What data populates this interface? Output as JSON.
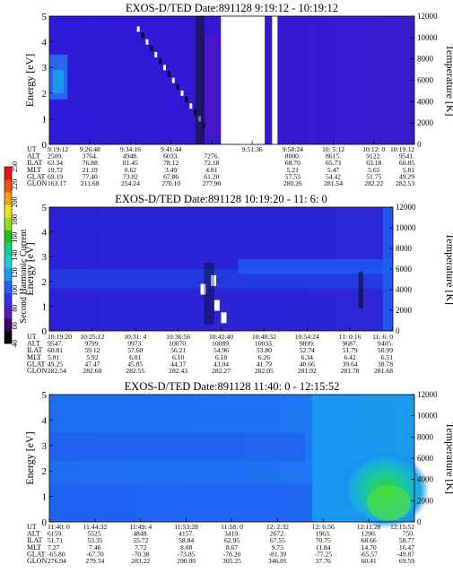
{
  "colorbar": {
    "label": "Second Harmonic Current",
    "ticks": [
      "40",
      "60",
      "80",
      "100",
      "120",
      "140",
      "160",
      "180",
      "200",
      "220",
      "250"
    ],
    "colors": [
      "#000000",
      "#3a0066",
      "#5a18c0",
      "#3030f0",
      "#1e62f5",
      "#189ef0",
      "#18d0d8",
      "#10d088",
      "#20c020",
      "#90e020",
      "#e8e818",
      "#f0a010",
      "#f05010",
      "#e81010"
    ]
  },
  "chart_data": [
    {
      "type": "heatmap",
      "title": "EXOS-D/TED   Date:891128  9:19:12 - 10:19:12",
      "ylabel": "Energy [eV]",
      "y2label": "Temperature [K]",
      "ylim": [
        0,
        5
      ],
      "y2lim": [
        0,
        12000
      ],
      "yticks": [
        "0",
        "1",
        "2",
        "3",
        "4",
        "5"
      ],
      "y2ticks": [
        "0",
        "2000",
        "4000",
        "6000",
        "8000",
        "10000",
        "12000"
      ],
      "rows": [
        {
          "label": "UT",
          "values": [
            "9:19:12",
            "9:26:48",
            "9:34:16",
            "9:41:44",
            "",
            "9:51:36",
            "9:58:24",
            "10: 5:12",
            "10:12: 0",
            "10:19:12"
          ]
        },
        {
          "label": "ALT",
          "values": [
            "2509.",
            "3764.",
            "4948.",
            "6033.",
            "7276.",
            "",
            "8000.",
            "8615.",
            "9122.",
            "9541."
          ]
        },
        {
          "label": "ILAT",
          "values": [
            "63.34",
            "76.88",
            "81.45",
            "78.12",
            "72.18",
            "",
            "68.70",
            "65.73",
            "63.18",
            "60.85"
          ]
        },
        {
          "label": "MLT",
          "values": [
            "19.72",
            "21.19",
            "0.62",
            "3.49",
            "4.81",
            "",
            "5.21",
            "5.47",
            "5.65",
            "5.81"
          ]
        },
        {
          "label": "GLAT",
          "values": [
            "69.19",
            "77.40",
            "73.82",
            "67.86",
            "61.20",
            "",
            "57.53",
            "54.42",
            "51.75",
            "49.29"
          ]
        },
        {
          "label": "GLON",
          "values": [
            "163.17",
            "211.68",
            "254.24",
            "270.10",
            "277.90",
            "",
            "280.26",
            "281.54",
            "282.22",
            "282.53"
          ]
        }
      ]
    },
    {
      "type": "heatmap",
      "title": "EXOS-D/TED   Date:891128  10:19:20 - 11: 6: 0",
      "ylabel": "Energy [eV]",
      "y2label": "Temperature [K]",
      "ylim": [
        0,
        5
      ],
      "y2lim": [
        0,
        12000
      ],
      "yticks": [
        "0",
        "1",
        "2",
        "3",
        "4",
        "5"
      ],
      "y2ticks": [
        "0",
        "2000",
        "4000",
        "6000",
        "8000",
        "10000",
        "12000"
      ],
      "rows": [
        {
          "label": "UT",
          "values": [
            "10:19:20",
            "10:25:12",
            "10:31: 4",
            "10:36:56",
            "10:42:40",
            "10:48:32",
            "10:54:24",
            "11: 0:16",
            "11: 6: 0"
          ]
        },
        {
          "label": "ALT",
          "values": [
            "9547.",
            "9799.",
            "9973.",
            "10070.",
            "10089.",
            "10033.",
            "9899.",
            "9687.",
            "9405."
          ]
        },
        {
          "label": "ILAT",
          "values": [
            "60.81",
            "59.12",
            "57.60",
            "56.21",
            "54.96",
            "53.80",
            "52.74",
            "51.79",
            "50.99"
          ]
        },
        {
          "label": "MLT",
          "values": [
            "5.81",
            "5.92",
            "6.01",
            "6.10",
            "6.18",
            "6.26",
            "6.34",
            "6.42",
            "6.51"
          ]
        },
        {
          "label": "GLAT",
          "values": [
            "49.25",
            "47.47",
            "45.85",
            "44.37",
            "43.04",
            "41.79",
            "40.66",
            "39.64",
            "38.78"
          ]
        },
        {
          "label": "GLON",
          "values": [
            "282.54",
            "282.60",
            "282.55",
            "282.43",
            "282.27",
            "282.05",
            "281.92",
            "281.78",
            "281.68"
          ]
        }
      ]
    },
    {
      "type": "heatmap",
      "title": "EXOS-D/TED   Date:891128  11:40: 0 - 12:15:52",
      "ylabel": "Energy [eV]",
      "y2label": "Temperature [K]",
      "ylim": [
        0,
        5
      ],
      "y2lim": [
        0,
        12000
      ],
      "yticks": [
        "0",
        "1",
        "2",
        "3",
        "4",
        "5"
      ],
      "y2ticks": [
        "0",
        "2000",
        "4000",
        "6000",
        "8000",
        "10000",
        "12000"
      ],
      "rows": [
        {
          "label": "UT",
          "values": [
            "11:40: 0",
            "11:44:32",
            "11:49: 4",
            "11:53:28",
            "11:58: 0",
            "12: 2:32",
            "12: 6:56",
            "12:11:28",
            "12:15:52"
          ]
        },
        {
          "label": "ALT",
          "values": [
            "6159.",
            "5525.",
            "4848.",
            "4157.",
            "3419.",
            "2672.",
            "1963.",
            "1290.",
            "750."
          ]
        },
        {
          "label": "ILAT",
          "values": [
            "51.71",
            "53.35",
            "55.72",
            "58.84",
            "62.95",
            "67.55",
            "70.75",
            "68.66",
            "58.77"
          ]
        },
        {
          "label": "MLT",
          "values": [
            "7.27",
            "7.46",
            "7.72",
            "8.08",
            "8.67",
            "9.75",
            "11.84",
            "14.70",
            "16.47"
          ]
        },
        {
          "label": "GLAT",
          "values": [
            "-65.80",
            "-67.70",
            "-70.38",
            "-73.85",
            "-78.20",
            "-81.39",
            "-77.25",
            "-65.57",
            "-49.87"
          ]
        },
        {
          "label": "GLON",
          "values": [
            "276.94",
            "279.34",
            "283.22",
            "290.00",
            "305.25",
            "346.01",
            "37.76",
            "60.41",
            "69.59"
          ]
        }
      ]
    }
  ]
}
